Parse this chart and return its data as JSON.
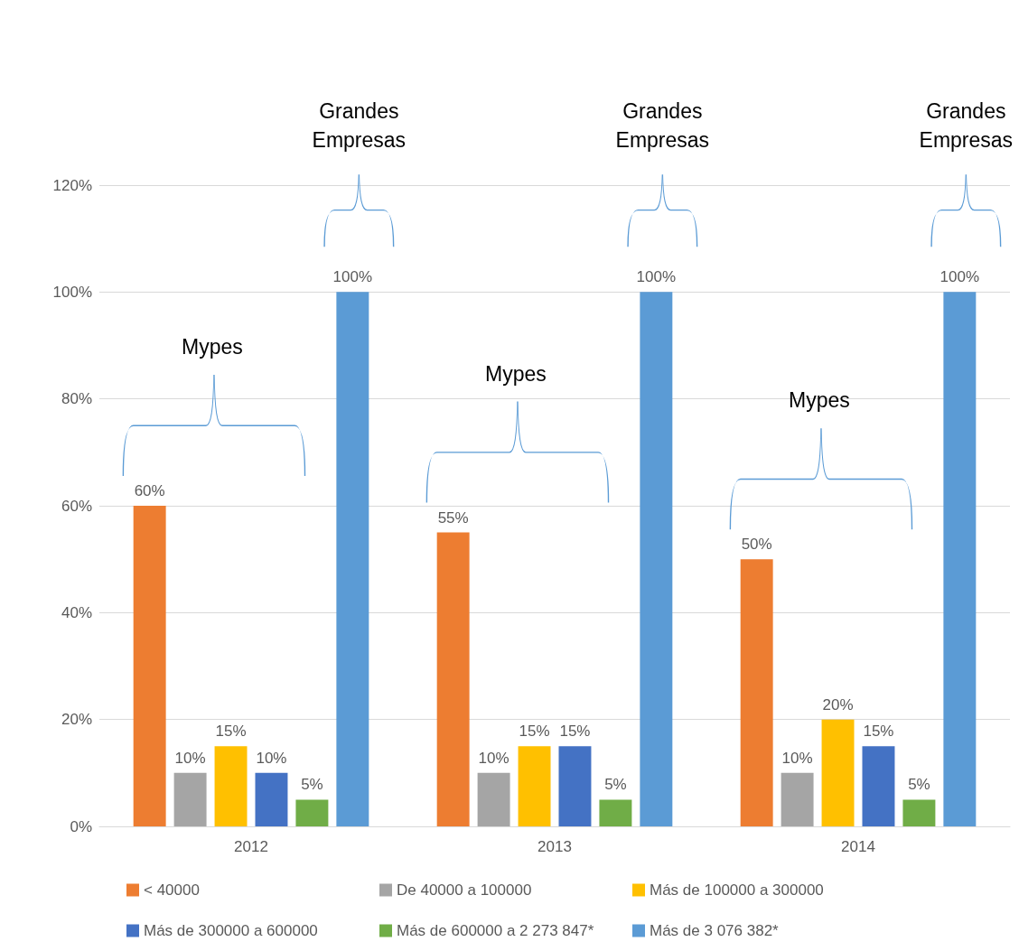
{
  "chart_data": {
    "type": "bar",
    "categories": [
      "2012",
      "2013",
      "2014"
    ],
    "series": [
      {
        "name": "< 40000",
        "color": "#ed7d31",
        "values": [
          60,
          55,
          50
        ],
        "value_labels": [
          "60%",
          "55%",
          "50%"
        ]
      },
      {
        "name": "De 40000 a 100000",
        "color": "#a5a5a5",
        "values": [
          10,
          10,
          10
        ],
        "value_labels": [
          "10%",
          "10%",
          "10%"
        ]
      },
      {
        "name": "Más de 100000 a 300000",
        "color": "#ffc000",
        "values": [
          15,
          15,
          20
        ],
        "value_labels": [
          "15%",
          "15%",
          "20%"
        ]
      },
      {
        "name": "Más de 300000 a 600000",
        "color": "#4472c4",
        "values": [
          10,
          15,
          15
        ],
        "value_labels": [
          "10%",
          "15%",
          "15%"
        ]
      },
      {
        "name": "Más de 600000 a 2 273 847*",
        "color": "#70ad47",
        "values": [
          5,
          5,
          5
        ],
        "value_labels": [
          "5%",
          "5%",
          "5%"
        ]
      },
      {
        "name": "Más de 3 076 382*",
        "color": "#5b9bd5",
        "values": [
          100,
          100,
          100
        ],
        "value_labels": [
          "100%",
          "100%",
          "100%"
        ]
      }
    ],
    "ylim": [
      0,
      120
    ],
    "yticks": [
      {
        "value": 0,
        "label": "0%"
      },
      {
        "value": 20,
        "label": "20%"
      },
      {
        "value": 40,
        "label": "40%"
      },
      {
        "value": 60,
        "label": "60%"
      },
      {
        "value": 80,
        "label": "80%"
      },
      {
        "value": 100,
        "label": "100%"
      },
      {
        "value": 120,
        "label": "120%"
      }
    ],
    "grid": "y",
    "legend": "bottom",
    "annotations": [
      "Mypes",
      "Grandes Empresas",
      "Mypes",
      "Grandes Empresas",
      "Mypes",
      "Grandes Empresas"
    ]
  }
}
